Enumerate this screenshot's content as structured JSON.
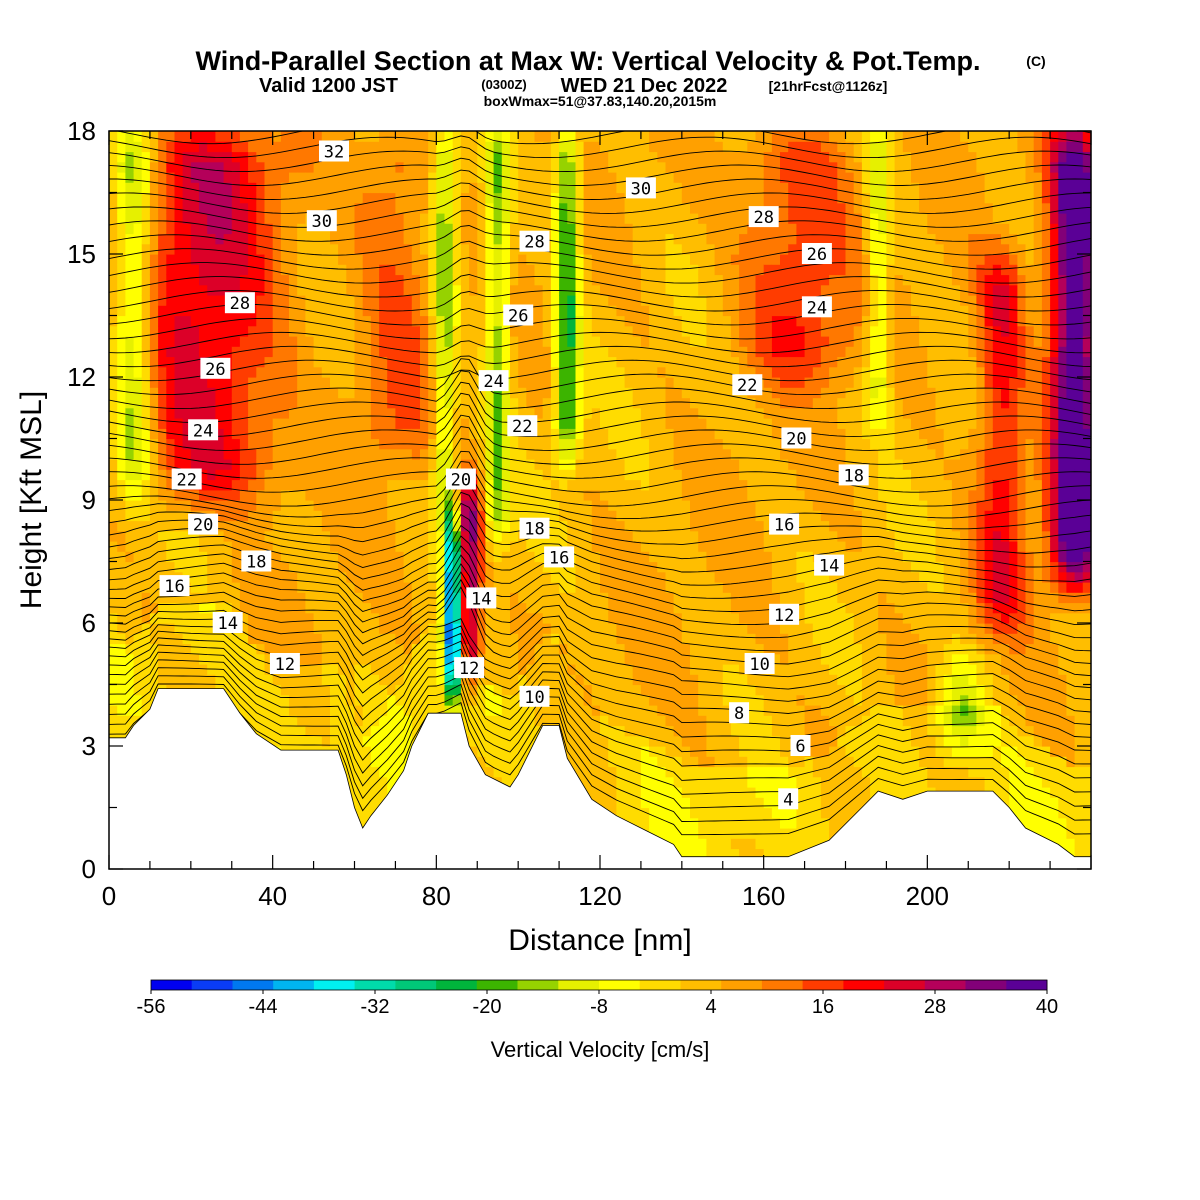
{
  "title": {
    "main": "Wind-Parallel Section at Max W: Vertical Velocity & Pot.Temp.",
    "copyright": "(C)",
    "valid_prefix": "Valid 1200 JST",
    "valid_utc": "(0300Z)",
    "valid_date": "WED 21 Dec 2022",
    "forecast": "[21hrFcst@1126z]",
    "box_info": "boxWmax=51@37.83,140.20,2015m"
  },
  "chart_data": {
    "type": "heatmap",
    "xlabel": "Distance [nm]",
    "ylabel": "Height [Kft MSL]",
    "xlim": [
      0,
      240
    ],
    "ylim": [
      0,
      18
    ],
    "x_ticks": [
      0,
      40,
      80,
      120,
      160,
      200
    ],
    "y_ticks": [
      0,
      3,
      6,
      9,
      12,
      15,
      18
    ],
    "colorbar": {
      "title": "Vertical Velocity [cm/s]",
      "tick_labels": [
        "-56",
        "-44",
        "-32",
        "-20",
        "-8",
        "4",
        "16",
        "28",
        "40"
      ],
      "min": -56,
      "max": 40,
      "colors": [
        "#0000f0",
        "#0a3cf5",
        "#0078f0",
        "#00b4f0",
        "#00f0f0",
        "#00dcaa",
        "#00c878",
        "#00b43c",
        "#3cb400",
        "#96d200",
        "#e6f000",
        "#ffff00",
        "#ffdc00",
        "#ffbe00",
        "#ffa000",
        "#ff7800",
        "#ff3c00",
        "#ff0000",
        "#dc0028",
        "#b4005a",
        "#820078",
        "#5a0096"
      ]
    },
    "terrain_kft": [
      [
        0,
        3.2
      ],
      [
        4,
        3.2
      ],
      [
        6,
        3.5
      ],
      [
        10,
        3.9
      ],
      [
        12,
        4.4
      ],
      [
        28,
        4.4
      ],
      [
        30,
        4.1
      ],
      [
        32,
        3.8
      ],
      [
        36,
        3.3
      ],
      [
        42,
        2.9
      ],
      [
        56,
        2.9
      ],
      [
        58,
        2.3
      ],
      [
        60,
        1.5
      ],
      [
        62,
        1.0
      ],
      [
        64,
        1.3
      ],
      [
        68,
        1.8
      ],
      [
        72,
        2.4
      ],
      [
        74,
        3.0
      ],
      [
        78,
        3.8
      ],
      [
        86,
        3.8
      ],
      [
        88,
        3.0
      ],
      [
        92,
        2.3
      ],
      [
        98,
        2.0
      ],
      [
        100,
        2.3
      ],
      [
        106,
        3.5
      ],
      [
        110,
        3.5
      ],
      [
        112,
        2.7
      ],
      [
        118,
        1.7
      ],
      [
        124,
        1.3
      ],
      [
        132,
        0.9
      ],
      [
        138,
        0.6
      ],
      [
        140,
        0.3
      ],
      [
        166,
        0.3
      ],
      [
        176,
        0.7
      ],
      [
        184,
        1.5
      ],
      [
        188,
        1.9
      ],
      [
        194,
        1.7
      ],
      [
        200,
        1.9
      ],
      [
        216,
        1.9
      ],
      [
        220,
        1.5
      ],
      [
        224,
        1.0
      ],
      [
        232,
        0.6
      ],
      [
        236,
        0.3
      ],
      [
        240,
        0.3
      ]
    ],
    "w_field": {
      "note_units": "cm/s",
      "updraft_bands": [
        {
          "x": 24,
          "w": 18,
          "z0": 9,
          "z1": 18,
          "peak": 20
        },
        {
          "x": 88,
          "w": 3,
          "z0": 4.5,
          "z1": 9.5,
          "peak": 30
        },
        {
          "x": 70,
          "w": 10,
          "z0": 10,
          "z1": 18,
          "peak": 10
        },
        {
          "x": 168,
          "w": 14,
          "z0": 12,
          "z1": 18,
          "peak": 14
        },
        {
          "x": 218,
          "w": 6,
          "z0": 6,
          "z1": 15,
          "peak": 18
        },
        {
          "x": 236,
          "w": 6,
          "z0": 7,
          "z1": 18,
          "peak": 40
        }
      ],
      "downdraft_bands": [
        {
          "x": 6,
          "w": 5,
          "z0": 9,
          "z1": 18,
          "peak": -18
        },
        {
          "x": 84,
          "w": 2,
          "z0": 4.2,
          "z1": 8.5,
          "peak": -48
        },
        {
          "x": 82,
          "w": 3,
          "z0": 8.5,
          "z1": 18,
          "peak": -16
        },
        {
          "x": 95,
          "w": 3,
          "z0": 8,
          "z1": 18,
          "peak": -16
        },
        {
          "x": 112,
          "w": 3,
          "z0": 10,
          "z1": 18,
          "peak": -22
        },
        {
          "x": 188,
          "w": 3,
          "z0": 11,
          "z1": 18,
          "peak": -12
        },
        {
          "x": 208,
          "w": 6,
          "z0": 3,
          "z1": 5,
          "peak": -14
        }
      ]
    },
    "theta_contours": {
      "interval": 1,
      "labels": [
        {
          "value": "32",
          "x": 55,
          "z": 17.5
        },
        {
          "value": "30",
          "x": 52,
          "z": 15.8
        },
        {
          "value": "28",
          "x": 32,
          "z": 13.8
        },
        {
          "value": "26",
          "x": 26,
          "z": 12.2
        },
        {
          "value": "24",
          "x": 23,
          "z": 10.7
        },
        {
          "value": "22",
          "x": 19,
          "z": 9.5
        },
        {
          "value": "20",
          "x": 23,
          "z": 8.4
        },
        {
          "value": "18",
          "x": 36,
          "z": 7.5
        },
        {
          "value": "16",
          "x": 16,
          "z": 6.9
        },
        {
          "value": "14",
          "x": 29,
          "z": 6.0
        },
        {
          "value": "12",
          "x": 43,
          "z": 5.0
        },
        {
          "value": "28",
          "x": 104,
          "z": 15.3
        },
        {
          "value": "26",
          "x": 100,
          "z": 13.5
        },
        {
          "value": "24",
          "x": 94,
          "z": 11.9
        },
        {
          "value": "22",
          "x": 101,
          "z": 10.8
        },
        {
          "value": "20",
          "x": 86,
          "z": 9.5
        },
        {
          "value": "18",
          "x": 104,
          "z": 8.3
        },
        {
          "value": "16",
          "x": 110,
          "z": 7.6
        },
        {
          "value": "14",
          "x": 91,
          "z": 6.6
        },
        {
          "value": "12",
          "x": 88,
          "z": 4.9
        },
        {
          "value": "10",
          "x": 104,
          "z": 4.2
        },
        {
          "value": "30",
          "x": 130,
          "z": 16.6
        },
        {
          "value": "28",
          "x": 160,
          "z": 15.9
        },
        {
          "value": "26",
          "x": 173,
          "z": 15.0
        },
        {
          "value": "24",
          "x": 173,
          "z": 13.7
        },
        {
          "value": "22",
          "x": 156,
          "z": 11.8
        },
        {
          "value": "20",
          "x": 168,
          "z": 10.5
        },
        {
          "value": "18",
          "x": 182,
          "z": 9.6
        },
        {
          "value": "16",
          "x": 165,
          "z": 8.4
        },
        {
          "value": "14",
          "x": 176,
          "z": 7.4
        },
        {
          "value": "12",
          "x": 165,
          "z": 6.2
        },
        {
          "value": "10",
          "x": 159,
          "z": 5.0
        },
        {
          "value": "8",
          "x": 154,
          "z": 3.8
        },
        {
          "value": "6",
          "x": 169,
          "z": 3.0
        },
        {
          "value": "4",
          "x": 166,
          "z": 1.7
        }
      ]
    }
  }
}
